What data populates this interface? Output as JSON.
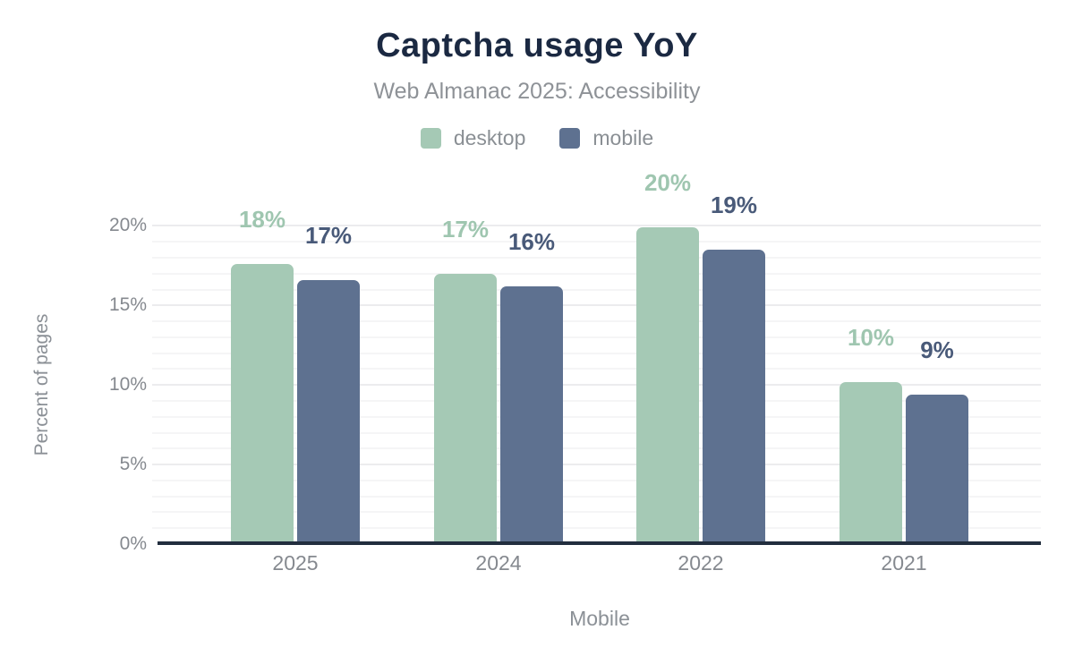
{
  "chart_data": {
    "type": "bar",
    "title": "Captcha usage YoY",
    "subtitle": "Web Almanac 2025: Accessibility",
    "categories": [
      "2025",
      "2024",
      "2022",
      "2021"
    ],
    "series": [
      {
        "name": "desktop",
        "color": "#a5c9b5",
        "label_color": "#9fc6b0",
        "values": [
          17.6,
          17.0,
          19.9,
          10.2
        ],
        "labels": [
          "18%",
          "17%",
          "20%",
          "10%"
        ]
      },
      {
        "name": "mobile",
        "color": "#5e7190",
        "label_color": "#495a79",
        "values": [
          16.6,
          16.2,
          18.5,
          9.4
        ],
        "labels": [
          "17%",
          "16%",
          "19%",
          "9%"
        ]
      }
    ],
    "xlabel": "Mobile",
    "ylabel": "Percent of pages",
    "yticks": [
      {
        "label": "0%",
        "value": 0
      },
      {
        "label": "5%",
        "value": 5
      },
      {
        "label": "10%",
        "value": 10
      },
      {
        "label": "15%",
        "value": 15
      },
      {
        "label": "20%",
        "value": 20
      }
    ],
    "ylim": [
      0,
      20
    ],
    "grid": "horizontal, minor every 1%, major every 5%",
    "legend_position": "top",
    "colors": {
      "title": "#1b2942",
      "muted_text": "#8b9096",
      "axis_line": "#222e3e",
      "grid_minor": "#f5f5f6",
      "grid_major": "#ececee",
      "background": "#ffffff"
    }
  }
}
